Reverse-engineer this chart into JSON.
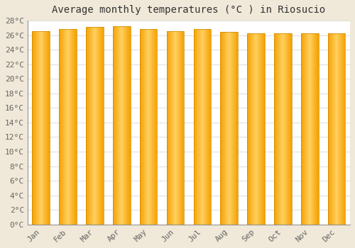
{
  "title": "Average monthly temperatures (°C ) in Riosucio",
  "months": [
    "Jan",
    "Feb",
    "Mar",
    "Apr",
    "May",
    "Jun",
    "Jul",
    "Aug",
    "Sep",
    "Oct",
    "Nov",
    "Dec"
  ],
  "values": [
    26.5,
    26.8,
    27.1,
    27.2,
    26.8,
    26.5,
    26.8,
    26.4,
    26.3,
    26.3,
    26.3,
    26.3
  ],
  "bar_color_center": "#FFD060",
  "bar_color_edge": "#F5A000",
  "bar_outline": "#CC8800",
  "ylim": [
    0,
    28
  ],
  "ytick_step": 2,
  "background_color": "#f0e8d8",
  "plot_background": "#ffffff",
  "grid_color": "#dddddd",
  "title_fontsize": 10,
  "tick_fontsize": 8,
  "font_family": "monospace"
}
